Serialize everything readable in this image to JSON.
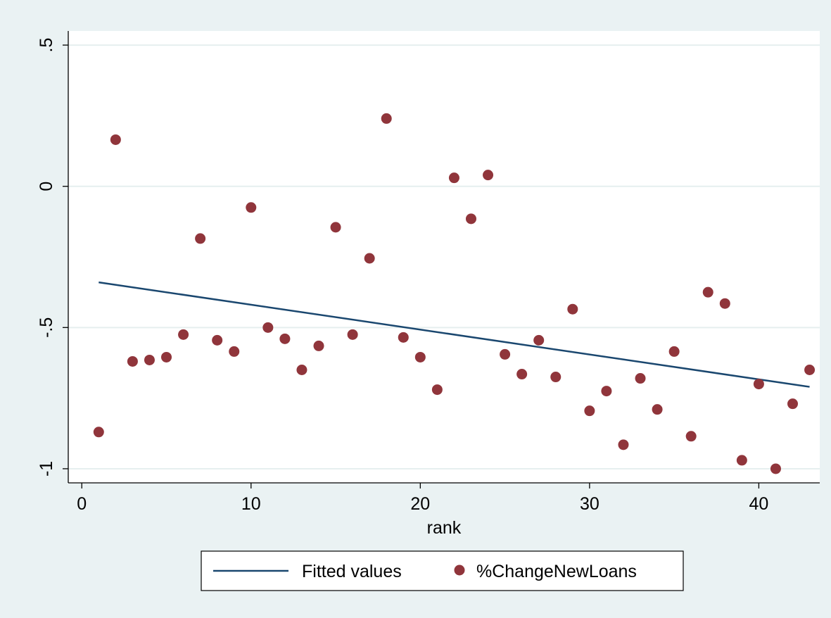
{
  "chart_data": {
    "type": "scatter",
    "title": "",
    "xlabel": "rank",
    "ylabel": "",
    "xlim": [
      -0.8,
      43.6
    ],
    "ylim": [
      -1.05,
      0.55
    ],
    "xticks": [
      0,
      10,
      20,
      30,
      40
    ],
    "xtick_labels": [
      "0",
      "10",
      "20",
      "30",
      "40"
    ],
    "yticks": [
      -1,
      -0.5,
      0,
      0.5
    ],
    "ytick_labels": [
      "-1",
      "-.5",
      "0",
      ".5"
    ],
    "grid": "horizontal",
    "legend_placement": "bottom",
    "colors": {
      "outer_background": "#eaf2f3",
      "plot_background": "#ffffff",
      "gridline": "#e6efef",
      "fitted_line": "#1a476f",
      "marker": "#90353b"
    },
    "series": [
      {
        "name": "Fitted values",
        "type": "line",
        "x": [
          1,
          43
        ],
        "y": [
          -0.34,
          -0.71
        ]
      },
      {
        "name": "%ChangeNewLoans",
        "type": "scatter",
        "x": [
          1,
          2,
          3,
          4,
          5,
          6,
          7,
          8,
          9,
          10,
          11,
          12,
          13,
          14,
          15,
          16,
          17,
          18,
          19,
          20,
          21,
          22,
          23,
          24,
          25,
          26,
          27,
          28,
          29,
          30,
          31,
          32,
          33,
          34,
          35,
          36,
          37,
          38,
          39,
          40,
          41,
          42,
          43
        ],
        "y": [
          -0.87,
          0.165,
          -0.62,
          -0.615,
          -0.605,
          -0.525,
          -0.185,
          -0.545,
          -0.585,
          -0.075,
          -0.5,
          -0.54,
          -0.65,
          -0.565,
          -0.145,
          -0.525,
          -0.255,
          0.24,
          -0.535,
          -0.605,
          -0.72,
          0.03,
          -0.115,
          0.04,
          -0.595,
          -0.665,
          -0.545,
          -0.675,
          -0.435,
          -0.795,
          -0.725,
          -0.915,
          -0.68,
          -0.79,
          -0.585,
          -0.885,
          -0.375,
          -0.415,
          -0.97,
          -0.7,
          -1.0,
          -0.77,
          -0.65
        ]
      }
    ]
  }
}
